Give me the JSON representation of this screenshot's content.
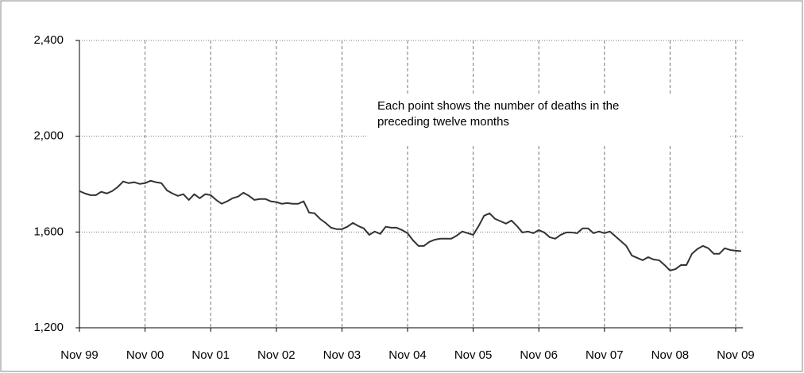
{
  "chart_data": {
    "type": "line",
    "annotation": [
      "Each point shows the number of deaths in the",
      "preceding twelve months"
    ],
    "categories": [
      "Nov 99",
      null,
      null,
      null,
      null,
      null,
      null,
      null,
      null,
      null,
      null,
      null,
      "Nov 00",
      null,
      null,
      null,
      null,
      null,
      null,
      null,
      null,
      null,
      null,
      null,
      "Nov 01",
      null,
      null,
      null,
      null,
      null,
      null,
      null,
      null,
      null,
      null,
      null,
      "Nov 02",
      null,
      null,
      null,
      null,
      null,
      null,
      null,
      null,
      null,
      null,
      null,
      "Nov 03",
      null,
      null,
      null,
      null,
      null,
      null,
      null,
      null,
      null,
      null,
      null,
      "Nov 04",
      null,
      null,
      null,
      null,
      null,
      null,
      null,
      null,
      null,
      null,
      null,
      "Nov 05",
      null,
      null,
      null,
      null,
      null,
      null,
      null,
      null,
      null,
      null,
      null,
      "Nov 06",
      null,
      null,
      null,
      null,
      null,
      null,
      null,
      null,
      null,
      null,
      null,
      "Nov 07",
      null,
      null,
      null,
      null,
      null,
      null,
      null,
      null,
      null,
      null,
      null,
      "Nov 08",
      null,
      null,
      null,
      null,
      null,
      null,
      null,
      null,
      null,
      null,
      null,
      "Nov 09",
      null
    ],
    "values": [
      1771,
      1761,
      1754,
      1754,
      1768,
      1761,
      1771,
      1788,
      1811,
      1804,
      1808,
      1801,
      1804,
      1814,
      1808,
      1804,
      1774,
      1761,
      1751,
      1758,
      1734,
      1758,
      1741,
      1758,
      1754,
      1734,
      1718,
      1728,
      1741,
      1748,
      1764,
      1751,
      1734,
      1738,
      1738,
      1728,
      1725,
      1718,
      1721,
      1718,
      1718,
      1728,
      1681,
      1678,
      1655,
      1638,
      1618,
      1612,
      1612,
      1622,
      1638,
      1625,
      1615,
      1588,
      1602,
      1592,
      1622,
      1618,
      1618,
      1608,
      1595,
      1565,
      1542,
      1542,
      1559,
      1568,
      1572,
      1572,
      1572,
      1585,
      1602,
      1595,
      1588,
      1625,
      1668,
      1678,
      1655,
      1645,
      1635,
      1648,
      1625,
      1598,
      1602,
      1595,
      1608,
      1598,
      1578,
      1572,
      1588,
      1598,
      1598,
      1595,
      1615,
      1615,
      1595,
      1602,
      1595,
      1602,
      1582,
      1562,
      1542,
      1502,
      1492,
      1482,
      1495,
      1485,
      1482,
      1462,
      1439,
      1445,
      1462,
      1462,
      1509,
      1529,
      1542,
      1532,
      1509,
      1509,
      1532,
      1525,
      1522,
      1520
    ],
    "color": "#333333",
    "ylim": [
      1200,
      2400
    ],
    "yticks": [
      {
        "value": 1200,
        "label": "1,200"
      },
      {
        "value": 1600,
        "label": "1,600"
      },
      {
        "value": 2000,
        "label": "2,000"
      },
      {
        "value": 2400,
        "label": "2,400"
      }
    ],
    "grid": true
  }
}
